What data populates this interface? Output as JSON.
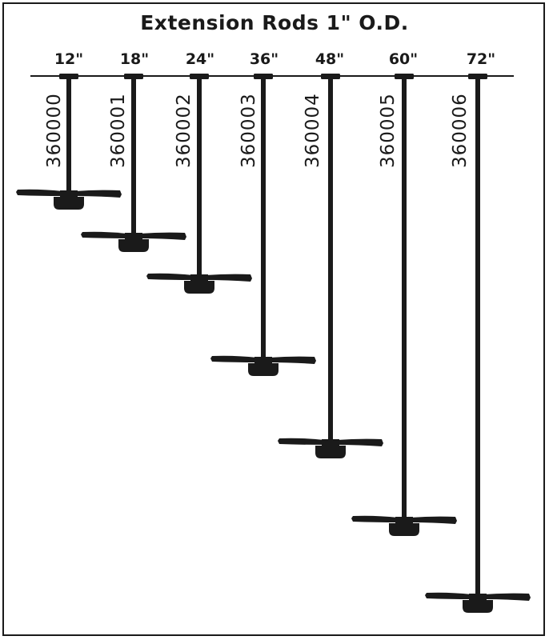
{
  "title": "Extension Rods 1\" O.D.",
  "rods": [
    {
      "length_label": "12\"",
      "part_number": "360000",
      "length_in": 12
    },
    {
      "length_label": "18\"",
      "part_number": "360001",
      "length_in": 18
    },
    {
      "length_label": "24\"",
      "part_number": "360002",
      "length_in": 24
    },
    {
      "length_label": "36\"",
      "part_number": "360003",
      "length_in": 36
    },
    {
      "length_label": "48\"",
      "part_number": "360004",
      "length_in": 48
    },
    {
      "length_label": "60\"",
      "part_number": "360005",
      "length_in": 60
    },
    {
      "length_label": "72\"",
      "part_number": "360006",
      "length_in": 72
    }
  ]
}
